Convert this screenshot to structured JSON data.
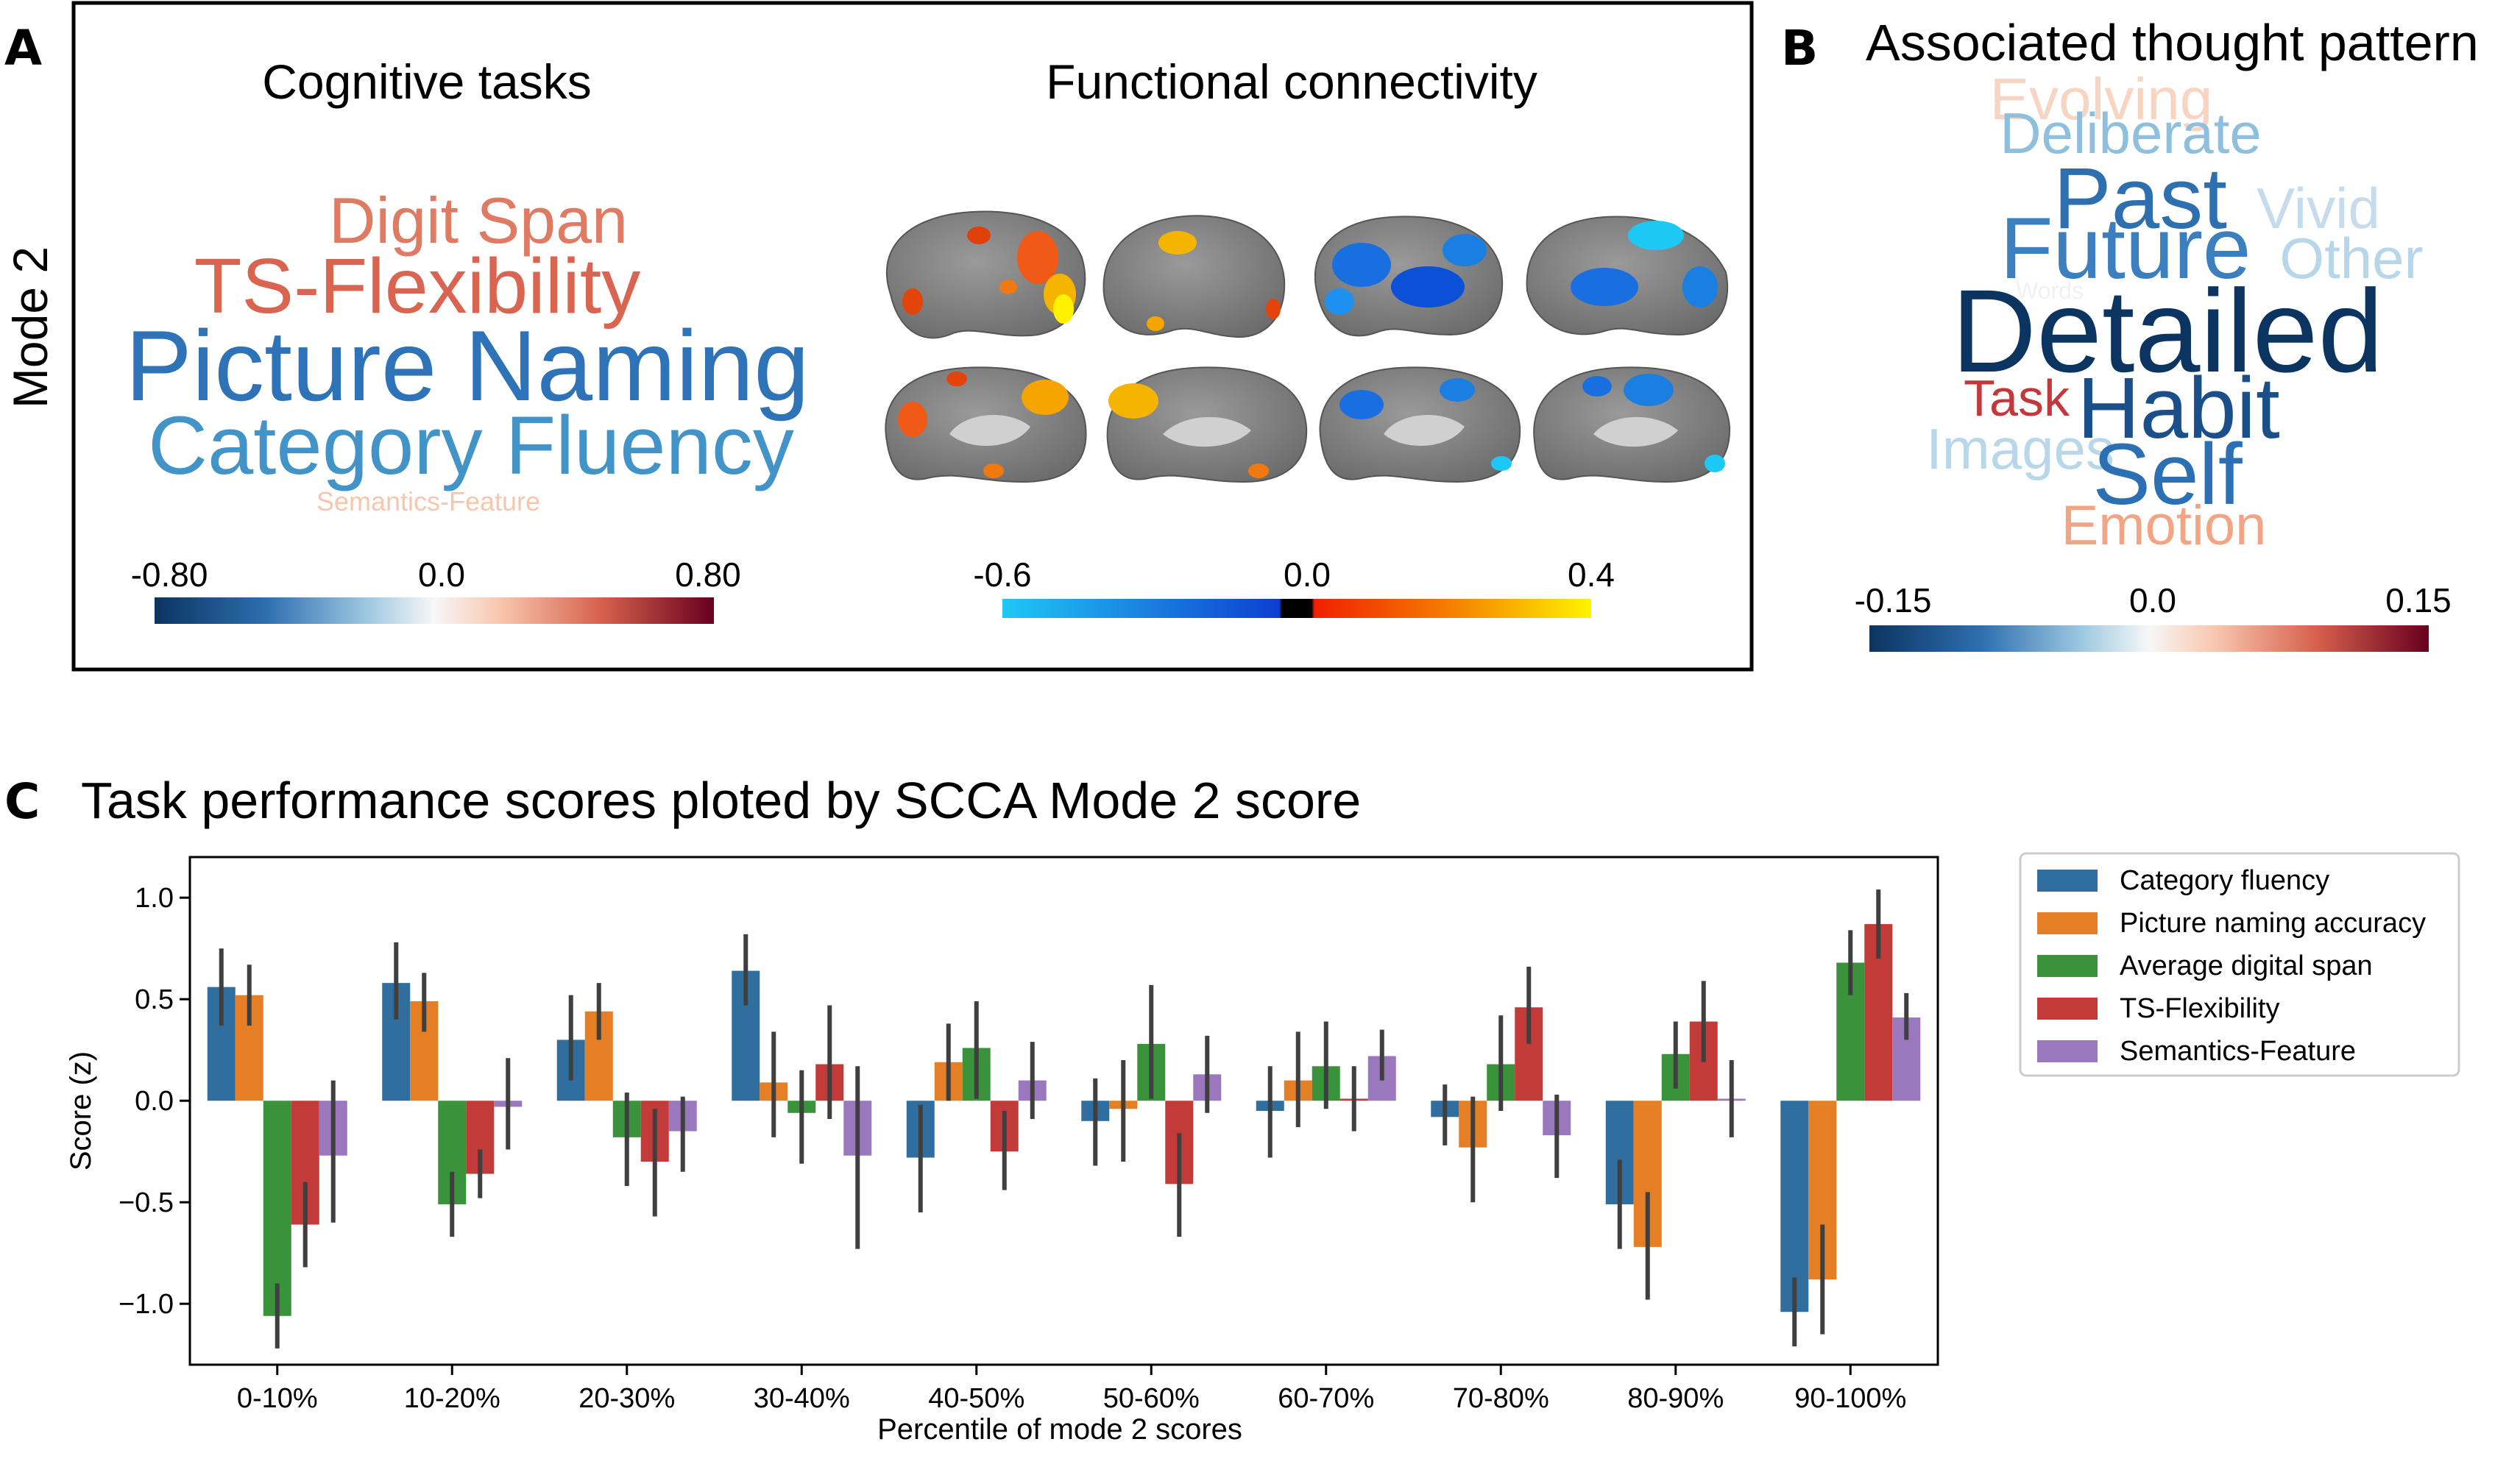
{
  "panels": {
    "a": {
      "letter": "A",
      "mode_label": "Mode 2",
      "tasks_title": "Cognitive tasks",
      "fc_title": "Functional connectivity",
      "task_words": [
        {
          "text": "Digit Span",
          "color": "#e07b63"
        },
        {
          "text": "TS-Flexibility",
          "color": "#d9644f"
        },
        {
          "text": "Picture Naming",
          "color": "#2e72b8"
        },
        {
          "text": "Category Fluency",
          "color": "#4293c8"
        },
        {
          "text": "Semantics-Feature",
          "color": "#f7c6ad"
        }
      ],
      "task_colorbar": {
        "min": "-0.80",
        "mid": "0.0",
        "max": "0.80"
      },
      "fc_colorbar": {
        "min": "-0.6",
        "mid": "0.0",
        "max": "0.4"
      }
    },
    "b": {
      "letter": "B",
      "title": "Associated thought pattern",
      "words": [
        {
          "text": "Evolving",
          "color": "#f8d5c2"
        },
        {
          "text": "Deliberate",
          "color": "#8ebfdd"
        },
        {
          "text": "Past",
          "color": "#2e6fb0"
        },
        {
          "text": "Vivid",
          "color": "#c6dcec"
        },
        {
          "text": "Future",
          "color": "#3b7fbe"
        },
        {
          "text": "Other",
          "color": "#b8d6e9"
        },
        {
          "text": "Words",
          "color": "#f1f1f1"
        },
        {
          "text": "Detailed",
          "color": "#0b3461"
        },
        {
          "text": "Task",
          "color": "#c3383a"
        },
        {
          "text": "Habit",
          "color": "#1b4f8a"
        },
        {
          "text": "Images",
          "color": "#b9d7ea"
        },
        {
          "text": "Self",
          "color": "#2b70b4"
        },
        {
          "text": "Emotion",
          "color": "#f2a584"
        }
      ],
      "colorbar": {
        "min": "-0.15",
        "mid": "0.0",
        "max": "0.15"
      }
    },
    "c": {
      "letter": "C",
      "title": "Task performance scores ploted by SCCA Mode 2 score"
    }
  },
  "chart_data": {
    "type": "bar",
    "xlabel": "Percentile of mode 2 scores",
    "ylabel": "Score (z)",
    "ylim": [
      -1.3,
      1.2
    ],
    "yticks": [
      "1.0",
      "0.5",
      "0.0",
      "−0.5",
      "−1.0"
    ],
    "ytick_values": [
      1.0,
      0.5,
      0.0,
      -0.5,
      -1.0
    ],
    "legend_position": "right",
    "categories": [
      "0-10%",
      "10-20%",
      "20-30%",
      "30-40%",
      "40-50%",
      "50-60%",
      "60-70%",
      "70-80%",
      "80-90%",
      "90-100%"
    ],
    "series": [
      {
        "name": "Category fluency",
        "color": "#2f6e9e",
        "values": [
          0.56,
          0.58,
          0.3,
          0.64,
          -0.28,
          -0.1,
          -0.05,
          -0.08,
          -0.51,
          -1.04
        ],
        "err_low": [
          0.37,
          0.4,
          0.1,
          0.47,
          -0.55,
          -0.32,
          -0.28,
          -0.22,
          -0.73,
          -1.21
        ],
        "err_high": [
          0.75,
          0.78,
          0.52,
          0.82,
          -0.02,
          0.11,
          0.17,
          0.08,
          -0.29,
          -0.87
        ]
      },
      {
        "name": "Picture naming accuracy",
        "color": "#e47f26",
        "values": [
          0.52,
          0.49,
          0.44,
          0.09,
          0.19,
          -0.04,
          0.1,
          -0.23,
          -0.72,
          -0.88
        ],
        "err_low": [
          0.37,
          0.34,
          0.3,
          -0.18,
          0.0,
          -0.3,
          -0.13,
          -0.5,
          -0.98,
          -1.15
        ],
        "err_high": [
          0.67,
          0.63,
          0.58,
          0.34,
          0.38,
          0.2,
          0.34,
          0.02,
          -0.45,
          -0.61
        ]
      },
      {
        "name": "Average digital span",
        "color": "#3a923a",
        "values": [
          -1.06,
          -0.51,
          -0.18,
          -0.06,
          0.26,
          0.28,
          0.17,
          0.18,
          0.23,
          0.68
        ],
        "err_low": [
          -1.22,
          -0.67,
          -0.42,
          -0.31,
          0.01,
          0.01,
          -0.04,
          -0.05,
          0.06,
          0.52
        ],
        "err_high": [
          -0.9,
          -0.35,
          0.04,
          0.15,
          0.49,
          0.57,
          0.39,
          0.42,
          0.39,
          0.84
        ]
      },
      {
        "name": "TS-Flexibility",
        "color": "#c23b38",
        "values": [
          -0.61,
          -0.36,
          -0.3,
          0.18,
          -0.25,
          -0.41,
          0.01,
          0.46,
          0.39,
          0.87
        ],
        "err_low": [
          -0.82,
          -0.48,
          -0.57,
          -0.09,
          -0.44,
          -0.67,
          -0.15,
          0.28,
          0.19,
          0.7
        ],
        "err_high": [
          -0.4,
          -0.24,
          -0.04,
          0.47,
          -0.05,
          -0.16,
          0.17,
          0.66,
          0.59,
          1.04
        ]
      },
      {
        "name": "Semantics-Feature",
        "color": "#9b78bd",
        "values": [
          -0.27,
          -0.03,
          -0.15,
          -0.27,
          0.1,
          0.13,
          0.22,
          -0.17,
          0.01,
          0.41
        ],
        "err_low": [
          -0.6,
          -0.24,
          -0.35,
          -0.73,
          -0.09,
          -0.06,
          0.1,
          -0.38,
          -0.18,
          0.3
        ],
        "err_high": [
          0.1,
          0.21,
          0.02,
          0.17,
          0.29,
          0.32,
          0.35,
          0.03,
          0.2,
          0.53
        ]
      }
    ]
  }
}
